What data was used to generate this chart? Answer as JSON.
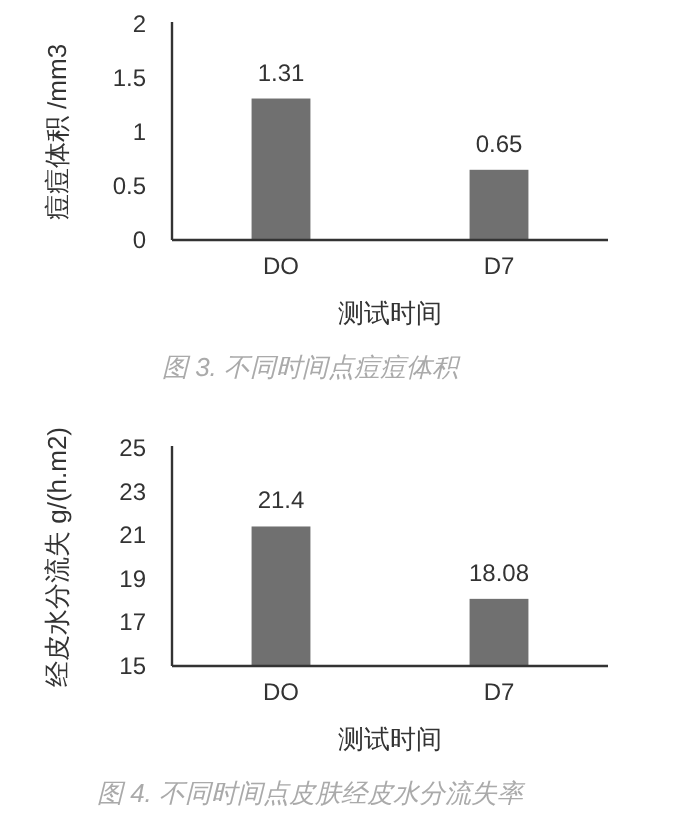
{
  "chart_data": [
    {
      "type": "bar",
      "categories": [
        "DO",
        "D7"
      ],
      "values": [
        1.31,
        0.65
      ],
      "color": "#707070",
      "ylim": [
        0,
        2
      ],
      "yticks": [
        0,
        0.5,
        1,
        1.5,
        2
      ],
      "data_labels": true,
      "ylabel": "痘痘体积 /mm3",
      "xlabel": "测试时间",
      "annotations": [
        "图 3. 不同时间点痘痘体积"
      ]
    },
    {
      "type": "bar",
      "categories": [
        "DO",
        "D7"
      ],
      "values": [
        21.4,
        18.08
      ],
      "color": "#707070",
      "ylim": [
        15,
        25
      ],
      "yticks": [
        15,
        17,
        19,
        21,
        23,
        25
      ],
      "data_labels": true,
      "ylabel": "经皮水分流失 g/(h.m2)",
      "xlabel": "测试时间",
      "annotations": [
        "图 4. 不同时间点皮肤经皮水分流失率"
      ]
    }
  ]
}
